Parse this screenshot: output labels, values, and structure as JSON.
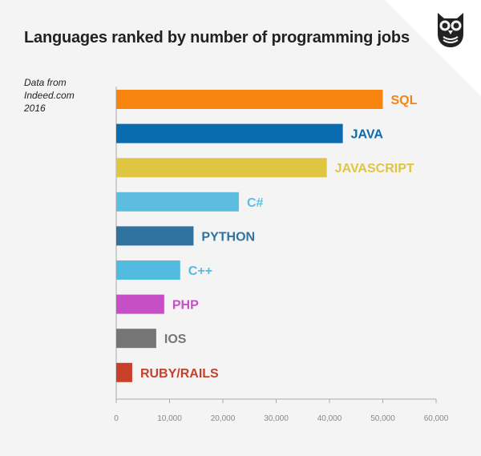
{
  "chart_data": {
    "type": "bar",
    "orientation": "horizontal",
    "title": "Languages ranked by number of programming jobs",
    "source": [
      "Data from",
      "Indeed.com",
      "2016"
    ],
    "categories": [
      "SQL",
      "JAVA",
      "JAVASCRIPT",
      "C#",
      "PYTHON",
      "C++",
      "PHP",
      "IOS",
      "RUBY/RAILS"
    ],
    "values": [
      50000,
      42500,
      39500,
      23000,
      14500,
      12000,
      9000,
      7500,
      3000
    ],
    "colors": [
      "#f7840f",
      "#0a6cb0",
      "#e0c540",
      "#5dbde0",
      "#2f72a0",
      "#54bbe0",
      "#c64fc6",
      "#757575",
      "#c8402a"
    ],
    "xlim": [
      0,
      60000
    ],
    "xticks": [
      0,
      10000,
      20000,
      30000,
      40000,
      50000,
      60000
    ],
    "xtick_labels": [
      "0",
      "10,000",
      "20,000",
      "30,000",
      "40,000",
      "50,000",
      "60,000"
    ],
    "xlabel": "",
    "ylabel": ""
  },
  "colors": {
    "background": "#f4f4f4",
    "axis": "#aaaaaa"
  },
  "logo": {
    "icon": "owl-icon"
  }
}
